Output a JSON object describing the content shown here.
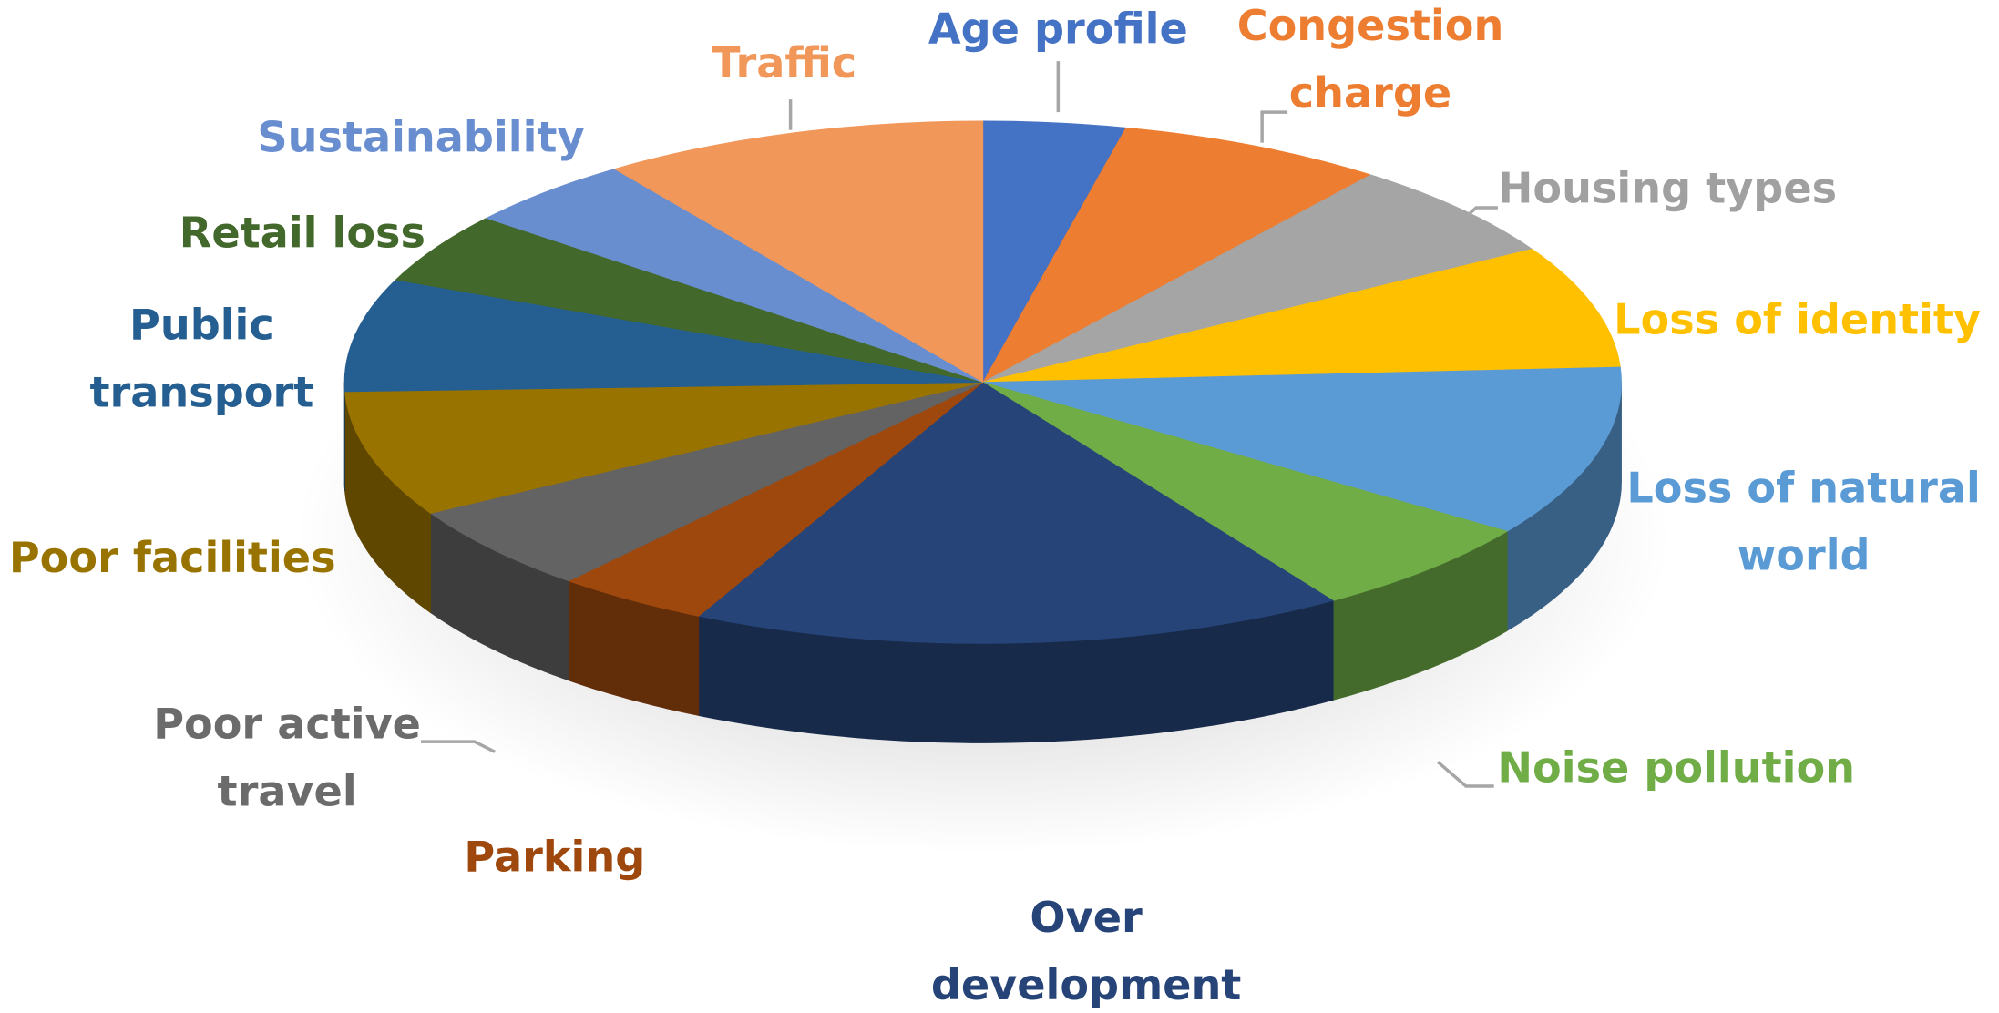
{
  "chart_data": {
    "type": "pie",
    "categories": [
      "Age profile",
      "Congestion charge",
      "Housing types",
      "Loss of identity",
      "Loss of natural world",
      "Noise pollution",
      "Over development",
      "Parking",
      "Poor active travel",
      "Poor facilities",
      "Public transport",
      "Retail loss",
      "Sustainability",
      "Traffic"
    ],
    "values": [
      3.6,
      6.8,
      6.1,
      7.6,
      10.6,
      6.1,
      16.6,
      3.9,
      5.4,
      7.8,
      7.0,
      4.4,
      4.4,
      9.8
    ],
    "colors": [
      "#4472c4",
      "#ed7d31",
      "#a5a5a5",
      "#ffc000",
      "#5b9bd5",
      "#70ad47",
      "#264478",
      "#9e480e",
      "#636363",
      "#997300",
      "#255e91",
      "#43682b",
      "#698ed0",
      "#f1975a"
    ]
  }
}
